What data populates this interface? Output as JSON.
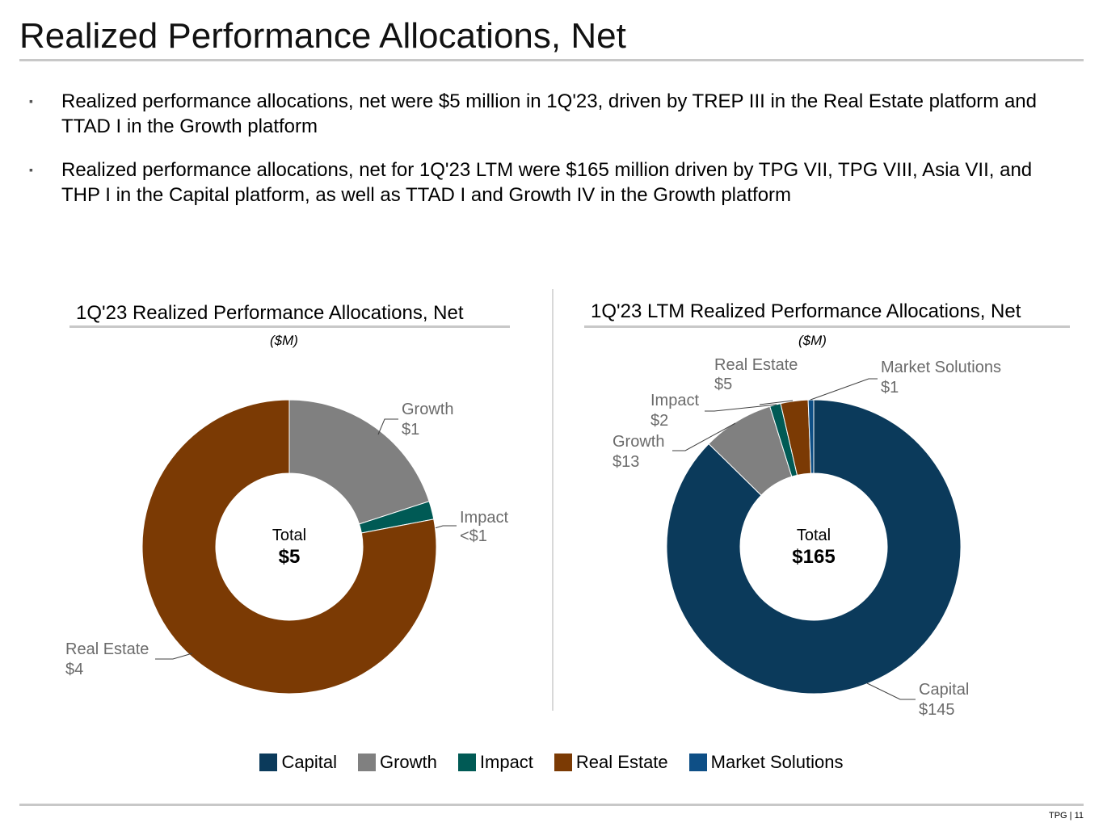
{
  "page": {
    "title": "Realized Performance Allocations, Net",
    "bullets": [
      "Realized performance allocations, net were $5 million in 1Q'23, driven by TREP III in the Real Estate platform and TTAD I in the Growth platform",
      "Realized performance allocations, net for 1Q'23 LTM were $165 million driven by TPG VII, TPG VIII, Asia VII, and THP I in the Capital platform, as well as TTAD I and Growth IV in the Growth platform"
    ],
    "bullet_marker": "▪",
    "footer": "TPG | 11"
  },
  "colors": {
    "Capital": "#0b3a5b",
    "Growth": "#808080",
    "Impact": "#005a55",
    "Real Estate": "#7b3a04",
    "Market Solutions": "#0e4f86"
  },
  "legend": [
    "Capital",
    "Growth",
    "Impact",
    "Real Estate",
    "Market Solutions"
  ],
  "chart_data": [
    {
      "type": "pie",
      "variant": "donut",
      "title": "1Q'23 Realized Performance Allocations, Net",
      "unit": "($M)",
      "center_label": "Total",
      "center_value": "$5",
      "slices": [
        {
          "name": "Growth",
          "value": 1.0,
          "label": "Growth",
          "value_label": "$1"
        },
        {
          "name": "Impact",
          "value": 0.1,
          "label": "Impact",
          "value_label": "<$1"
        },
        {
          "name": "Real Estate",
          "value": 3.9,
          "label": "Real Estate",
          "value_label": "$4"
        }
      ]
    },
    {
      "type": "pie",
      "variant": "donut",
      "title": "1Q'23 LTM Realized Performance Allocations, Net",
      "unit": "($M)",
      "center_label": "Total",
      "center_value": "$165",
      "slices": [
        {
          "name": "Capital",
          "value": 145,
          "label": "Capital",
          "value_label": "$145"
        },
        {
          "name": "Growth",
          "value": 13,
          "label": "Growth",
          "value_label": "$13"
        },
        {
          "name": "Impact",
          "value": 2,
          "label": "Impact",
          "value_label": "$2"
        },
        {
          "name": "Real Estate",
          "value": 5,
          "label": "Real Estate",
          "value_label": "$5"
        },
        {
          "name": "Market Solutions",
          "value": 1,
          "label": "Market Solutions",
          "value_label": "$1"
        }
      ]
    }
  ]
}
